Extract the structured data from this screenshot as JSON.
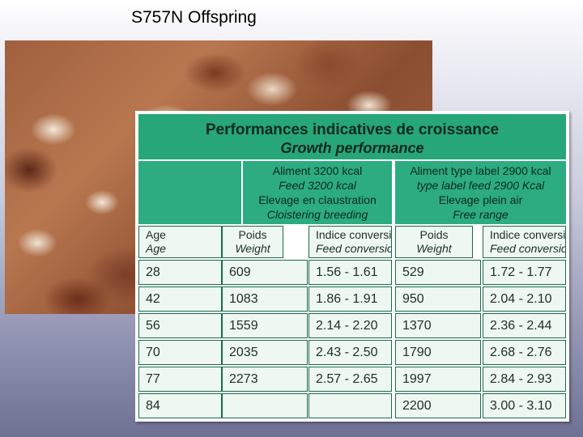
{
  "slide": {
    "title": "S757N Offspring"
  },
  "table": {
    "title_fr": "Performances indicatives de croissance",
    "title_en": "Growth performance",
    "group_a": [
      "Aliment 3200 kcal",
      "Feed 3200 kcal",
      "Elevage en claustration",
      "Cloistering breeding"
    ],
    "group_b": [
      "Aliment type label 2900 kcal",
      "type label feed 2900 Kcal",
      "Elevage plein air",
      "Free range"
    ],
    "columns": [
      {
        "fr": "Age",
        "en": "Age"
      },
      {
        "fr": "Poids",
        "en": "Weight"
      },
      {
        "fr": "Indice conversion",
        "en": "Feed conversion"
      },
      {
        "fr": "Poids",
        "en": "Weight"
      },
      {
        "fr": "Indice conversion",
        "en": "Feed conversion"
      }
    ],
    "rows": [
      [
        "28",
        "609",
        "1.56 - 1.61",
        "529",
        "1.72 - 1.77"
      ],
      [
        "42",
        "1083",
        "1.86 - 1.91",
        "950",
        "2.04 - 2.10"
      ],
      [
        "56",
        "1559",
        "2.14 - 2.20",
        "1370",
        "2.36 - 2.44"
      ],
      [
        "70",
        "2035",
        "2.43 - 2.50",
        "1790",
        "2.68 - 2.76"
      ],
      [
        "77",
        "2273",
        "2.57 - 2.65",
        "1997",
        "2.84 - 2.93"
      ],
      [
        "84",
        "",
        "",
        "2200",
        "3.00 - 3.10"
      ]
    ]
  }
}
